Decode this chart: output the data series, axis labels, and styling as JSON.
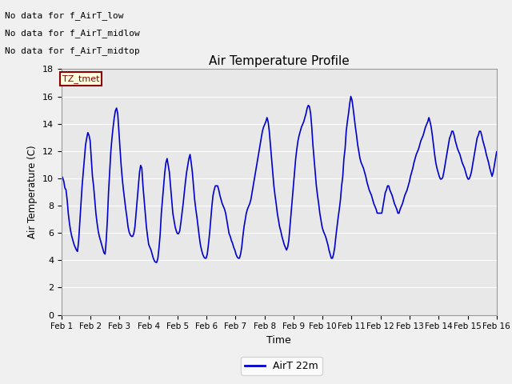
{
  "title": "Air Temperature Profile",
  "xlabel": "Time",
  "ylabel": "Air Temperature (C)",
  "line_color": "#0000cc",
  "line_width": 1.2,
  "plot_bg_color": "#e8e8e8",
  "fig_bg_color": "#f0f0f0",
  "ylim": [
    0,
    18
  ],
  "yticks": [
    0,
    2,
    4,
    6,
    8,
    10,
    12,
    14,
    16,
    18
  ],
  "xtick_labels": [
    "Feb 1",
    "Feb 2",
    "Feb 3",
    "Feb 4",
    "Feb 5",
    "Feb 6",
    "Feb 7",
    "Feb 8",
    "Feb 9",
    "Feb 10",
    "Feb 11",
    "Feb 12",
    "Feb 13",
    "Feb 14",
    "Feb 15",
    "Feb 16"
  ],
  "legend_label": "AirT 22m",
  "no_data_texts": [
    "No data for f_AirT_low",
    "No data for f_AirT_midlow",
    "No data for f_AirT_midtop"
  ],
  "tz_label": "TZ_tmet",
  "temperatures": [
    10.2,
    10.05,
    9.8,
    9.3,
    9.15,
    8.4,
    7.4,
    6.7,
    6.15,
    5.75,
    5.45,
    5.15,
    4.95,
    4.75,
    4.65,
    5.45,
    6.75,
    8.15,
    9.45,
    10.45,
    11.45,
    12.45,
    12.95,
    13.35,
    13.15,
    12.75,
    11.45,
    10.15,
    9.45,
    8.45,
    7.45,
    6.75,
    6.15,
    5.75,
    5.45,
    5.15,
    4.85,
    4.55,
    4.45,
    5.45,
    6.95,
    8.95,
    10.45,
    11.95,
    12.95,
    13.75,
    14.45,
    14.95,
    15.15,
    14.75,
    13.45,
    12.15,
    10.95,
    9.95,
    9.15,
    8.45,
    7.75,
    7.15,
    6.45,
    6.05,
    5.85,
    5.75,
    5.75,
    5.95,
    6.45,
    7.45,
    8.45,
    9.45,
    10.45,
    10.95,
    10.75,
    9.45,
    8.45,
    7.45,
    6.45,
    5.75,
    5.15,
    4.95,
    4.75,
    4.45,
    4.15,
    3.95,
    3.85,
    3.85,
    4.15,
    4.95,
    5.95,
    7.45,
    8.45,
    9.45,
    10.45,
    11.15,
    11.45,
    10.95,
    10.45,
    9.45,
    8.45,
    7.45,
    6.95,
    6.45,
    6.15,
    5.95,
    5.95,
    6.15,
    6.75,
    7.45,
    8.15,
    8.95,
    9.75,
    10.45,
    10.95,
    11.45,
    11.75,
    11.15,
    10.45,
    9.45,
    8.45,
    7.75,
    7.15,
    6.45,
    5.75,
    5.15,
    4.75,
    4.45,
    4.25,
    4.15,
    4.15,
    4.45,
    5.15,
    5.95,
    6.95,
    7.95,
    8.75,
    9.15,
    9.45,
    9.45,
    9.45,
    9.15,
    8.75,
    8.45,
    8.15,
    7.95,
    7.75,
    7.45,
    6.95,
    6.45,
    5.95,
    5.75,
    5.45,
    5.25,
    4.95,
    4.75,
    4.45,
    4.25,
    4.15,
    4.15,
    4.45,
    4.95,
    5.75,
    6.45,
    6.95,
    7.45,
    7.75,
    7.95,
    8.15,
    8.45,
    8.95,
    9.45,
    9.95,
    10.45,
    10.95,
    11.45,
    11.95,
    12.45,
    12.95,
    13.45,
    13.75,
    13.95,
    14.15,
    14.45,
    14.15,
    13.45,
    12.45,
    11.45,
    10.45,
    9.45,
    8.75,
    8.15,
    7.45,
    6.95,
    6.45,
    6.15,
    5.75,
    5.45,
    5.15,
    4.95,
    4.75,
    4.95,
    5.45,
    6.45,
    7.45,
    8.45,
    9.45,
    10.45,
    11.45,
    12.15,
    12.75,
    13.15,
    13.45,
    13.75,
    13.95,
    14.15,
    14.45,
    14.75,
    15.15,
    15.35,
    15.25,
    14.75,
    13.75,
    12.45,
    11.45,
    10.45,
    9.45,
    8.75,
    8.15,
    7.45,
    6.95,
    6.45,
    6.15,
    5.95,
    5.75,
    5.45,
    5.15,
    4.75,
    4.45,
    4.15,
    4.15,
    4.45,
    4.95,
    5.75,
    6.45,
    7.15,
    7.75,
    8.45,
    9.45,
    10.15,
    11.45,
    12.15,
    13.45,
    14.15,
    14.75,
    15.45,
    16.0,
    15.75,
    15.15,
    14.45,
    13.75,
    13.15,
    12.45,
    11.95,
    11.45,
    11.15,
    10.95,
    10.75,
    10.45,
    10.15,
    9.75,
    9.45,
    9.15,
    8.95,
    8.75,
    8.45,
    8.15,
    7.95,
    7.75,
    7.45,
    7.45,
    7.45,
    7.45,
    7.45,
    7.95,
    8.45,
    8.95,
    9.15,
    9.45,
    9.45,
    9.15,
    8.95,
    8.75,
    8.45,
    8.15,
    7.95,
    7.75,
    7.45,
    7.45,
    7.75,
    7.95,
    8.15,
    8.45,
    8.75,
    8.95,
    9.15,
    9.45,
    9.75,
    10.15,
    10.45,
    10.75,
    11.15,
    11.45,
    11.75,
    11.95,
    12.15,
    12.45,
    12.75,
    12.95,
    13.15,
    13.45,
    13.75,
    13.95,
    14.15,
    14.45,
    14.15,
    13.75,
    13.15,
    12.45,
    11.75,
    11.15,
    10.75,
    10.45,
    10.15,
    9.95,
    9.95,
    10.05,
    10.45,
    10.95,
    11.45,
    11.95,
    12.45,
    12.95,
    13.15,
    13.45,
    13.45,
    13.15,
    12.75,
    12.45,
    12.15,
    11.95,
    11.75,
    11.45,
    11.15,
    10.95,
    10.75,
    10.45,
    10.15,
    9.95,
    9.95,
    10.15,
    10.45,
    10.95,
    11.45,
    11.95,
    12.45,
    12.95,
    13.15,
    13.45,
    13.45,
    13.15,
    12.75,
    12.45,
    12.15,
    11.75,
    11.45,
    11.15,
    10.75,
    10.45,
    10.15,
    10.45,
    10.95,
    11.45,
    11.95
  ]
}
